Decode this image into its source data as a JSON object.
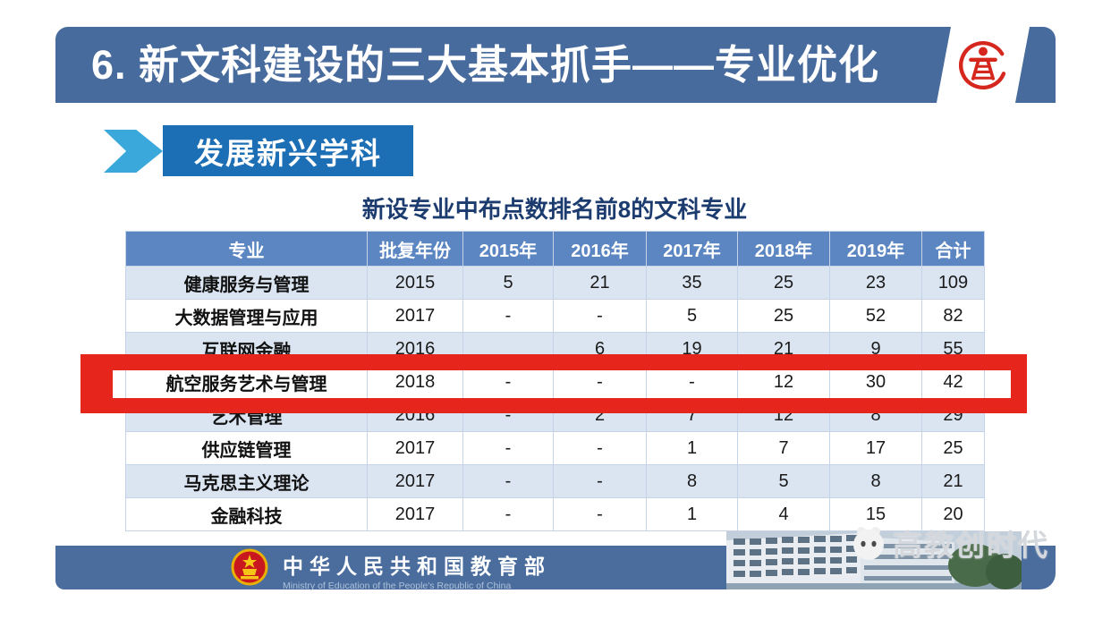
{
  "title_bar": {
    "title": "6. 新文科建设的三大基本抓手——专业优化",
    "logo": "gaojiao-red-seal"
  },
  "section": {
    "label": "发展新兴学科"
  },
  "table": {
    "title": "新设专业中布点数排名前8的文科专业",
    "headers": [
      "专业",
      "批复年份",
      "2015年",
      "2016年",
      "2017年",
      "2018年",
      "2019年",
      "合计"
    ],
    "rows": [
      [
        "健康服务与管理",
        "2015",
        "5",
        "21",
        "35",
        "25",
        "23",
        "109"
      ],
      [
        "大数据管理与应用",
        "2017",
        "-",
        "-",
        "5",
        "25",
        "52",
        "82"
      ],
      [
        "互联网金融",
        "2016",
        "",
        "6",
        "19",
        "21",
        "9",
        "55"
      ],
      [
        "航空服务艺术与管理",
        "2018",
        "-",
        "-",
        "-",
        "12",
        "30",
        "42"
      ],
      [
        "艺术管理",
        "2016",
        "-",
        "2",
        "7",
        "12",
        "8",
        "29"
      ],
      [
        "供应链管理",
        "2017",
        "-",
        "-",
        "1",
        "7",
        "17",
        "25"
      ],
      [
        "马克思主义理论",
        "2017",
        "-",
        "-",
        "8",
        "5",
        "8",
        "21"
      ],
      [
        "金融科技",
        "2017",
        "-",
        "-",
        "1",
        "4",
        "15",
        "20"
      ]
    ],
    "highlighted_row": "航空服务艺术与管理"
  },
  "footer": {
    "ministry_cn": "中华人民共和国教育部",
    "ministry_en": "Ministry of Education of the People's Republic of China",
    "watermark": "高教创时代"
  },
  "colors": {
    "title_bar": "#486B9D",
    "section_box": "#1D6FB5",
    "arrow": "#3BA8DC",
    "table_header": "#5C86C2",
    "band_row": "#DBE5F1",
    "highlight_border": "#E6251C",
    "footer_bar": "#4A6D9E",
    "seal_red": "#D5271D",
    "table_title_text": "#1C3B6E"
  }
}
